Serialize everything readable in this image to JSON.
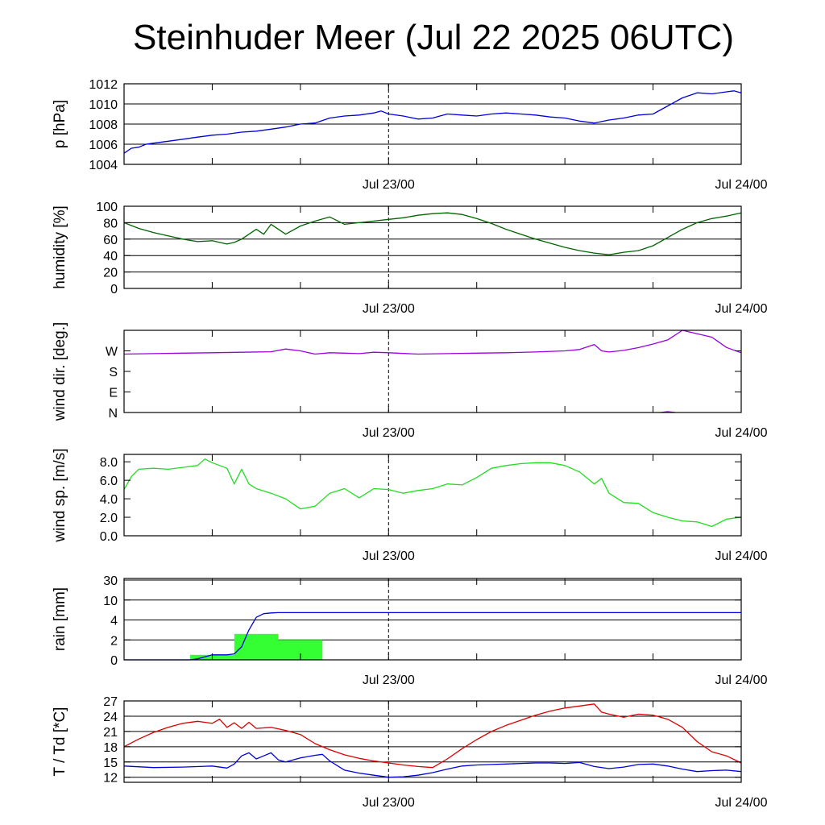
{
  "title": "Steinhuder Meer (Jul 22 2025 06UTC)",
  "colors": {
    "pressure": "#0000dd",
    "humidity": "#006400",
    "wind_dir": "#9a00dd",
    "wind_speed": "#22dd22",
    "rain_bar": "#33ff33",
    "rain_accum": "#0000dd",
    "temperature": "#dd0000",
    "dewpoint": "#0000dd"
  },
  "chart_data": [
    {
      "id": "pressure",
      "type": "line",
      "ylabel": "p [hPa]",
      "ylim": [
        1004,
        1012
      ],
      "yticks": [
        "1004",
        "1006",
        "1008",
        "1010",
        "1012"
      ],
      "ytick_values": [
        1004,
        1006,
        1008,
        1010,
        1012
      ],
      "xlim": [
        0,
        42
      ],
      "xticks": [
        "Jul 23/00",
        "Jul 24/00"
      ],
      "xtick_values": [
        18,
        42
      ],
      "grid": true,
      "series": [
        {
          "color_key": "pressure",
          "x": [
            0,
            0.5,
            1,
            1.5,
            2,
            3,
            4,
            5,
            6,
            7,
            8,
            9,
            10,
            11,
            12,
            13,
            14,
            15,
            16,
            17,
            17.5,
            18,
            19,
            20,
            21,
            22,
            23,
            24,
            25,
            26,
            27,
            28,
            29,
            30,
            31,
            32,
            33,
            34,
            35,
            36,
            37,
            38,
            39,
            40,
            41,
            41.5,
            42
          ],
          "y": [
            1005.1,
            1005.6,
            1005.7,
            1006.0,
            1006.1,
            1006.3,
            1006.5,
            1006.7,
            1006.9,
            1007.0,
            1007.2,
            1007.3,
            1007.5,
            1007.7,
            1008.0,
            1008.1,
            1008.6,
            1008.8,
            1008.9,
            1009.1,
            1009.3,
            1009.0,
            1008.8,
            1008.5,
            1008.6,
            1009.0,
            1008.9,
            1008.8,
            1009.0,
            1009.1,
            1009.0,
            1008.9,
            1008.7,
            1008.6,
            1008.3,
            1008.1,
            1008.4,
            1008.6,
            1008.9,
            1009.0,
            1009.8,
            1010.6,
            1011.1,
            1011.0,
            1011.2,
            1011.3,
            1011.1
          ]
        }
      ]
    },
    {
      "id": "humidity",
      "type": "line",
      "ylabel": "humidity [%]",
      "ylim": [
        0,
        100
      ],
      "yticks": [
        "0",
        "20",
        "40",
        "60",
        "80",
        "100"
      ],
      "ytick_values": [
        0,
        20,
        40,
        60,
        80,
        100
      ],
      "xlim": [
        0,
        42
      ],
      "xticks": [
        "Jul 23/00",
        "Jul 24/00"
      ],
      "xtick_values": [
        18,
        42
      ],
      "grid": true,
      "series": [
        {
          "color_key": "humidity",
          "x": [
            0,
            1,
            2,
            3,
            4,
            5,
            6,
            6.5,
            7,
            7.5,
            8,
            8.5,
            9,
            9.5,
            10,
            11,
            12,
            13,
            14,
            15,
            16,
            17,
            18,
            19,
            20,
            21,
            22,
            23,
            24,
            25,
            26,
            27,
            28,
            29,
            30,
            31,
            32,
            33,
            34,
            35,
            36,
            37,
            38,
            39,
            40,
            41,
            42
          ],
          "y": [
            80,
            73,
            68,
            64,
            60,
            57,
            58,
            56,
            54,
            56,
            60,
            66,
            72,
            66,
            78,
            66,
            76,
            82,
            87,
            78,
            80,
            82,
            84,
            86,
            89,
            91,
            92,
            90,
            85,
            79,
            72,
            66,
            60,
            55,
            50,
            46,
            43,
            41,
            44,
            46,
            52,
            62,
            72,
            80,
            85,
            88,
            92
          ]
        }
      ]
    },
    {
      "id": "wind_dir",
      "type": "line",
      "ylabel": "wind dir. [deg.]",
      "ylim": [
        0,
        360
      ],
      "yticks": [
        "N",
        "E",
        "S",
        "W"
      ],
      "ytick_values": [
        0,
        90,
        180,
        270
      ],
      "xlim": [
        0,
        42
      ],
      "xticks": [
        "Jul 23/00",
        "Jul 24/00"
      ],
      "xtick_values": [
        18,
        42
      ],
      "grid": false,
      "series": [
        {
          "color_key": "wind_dir",
          "x": [
            0,
            2,
            4,
            6,
            8,
            10,
            11,
            12,
            13,
            14,
            15,
            16,
            17,
            18,
            20,
            22,
            24,
            26,
            28,
            30,
            31,
            32,
            32.5,
            33,
            34,
            35,
            36,
            37,
            38,
            39,
            40,
            41,
            42
          ],
          "y": [
            256,
            258,
            260,
            262,
            264,
            266,
            278,
            270,
            256,
            262,
            260,
            258,
            264,
            262,
            256,
            258,
            260,
            262,
            265,
            270,
            276,
            298,
            270,
            265,
            272,
            284,
            300,
            318,
            360,
            345,
            330,
            285,
            262
          ]
        },
        {
          "color_key": "wind_dir",
          "x": [
            36.5,
            37,
            37.5
          ],
          "y": [
            0,
            4,
            0
          ]
        }
      ]
    },
    {
      "id": "wind_speed",
      "type": "line",
      "ylabel": "wind sp. [m/s]",
      "ylim": [
        0,
        8.8
      ],
      "yticks": [
        "0.0",
        "2.0",
        "4.0",
        "6.0",
        "8.0"
      ],
      "ytick_values": [
        0,
        2,
        4,
        6,
        8
      ],
      "xlim": [
        0,
        42
      ],
      "xticks": [
        "Jul 23/00",
        "Jul 24/00"
      ],
      "xtick_values": [
        18,
        42
      ],
      "grid": false,
      "series": [
        {
          "color_key": "wind_speed",
          "x": [
            0,
            0.5,
            1,
            2,
            3,
            4,
            5,
            5.5,
            6,
            7,
            7.5,
            8,
            8.5,
            9,
            10,
            11,
            12,
            13,
            14,
            15,
            16,
            17,
            18,
            19,
            20,
            21,
            22,
            23,
            24,
            25,
            26,
            27,
            28,
            29,
            30,
            31,
            32,
            32.5,
            33,
            34,
            35,
            36,
            37,
            38,
            39,
            40,
            41,
            42
          ],
          "y": [
            5.0,
            6.4,
            7.2,
            7.3,
            7.2,
            7.4,
            7.6,
            8.3,
            7.9,
            7.3,
            5.6,
            7.2,
            5.6,
            5.1,
            4.6,
            4.0,
            2.9,
            3.2,
            4.6,
            5.1,
            4.1,
            5.1,
            5.0,
            4.6,
            4.9,
            5.1,
            5.6,
            5.5,
            6.3,
            7.3,
            7.6,
            7.8,
            7.9,
            7.9,
            7.6,
            6.9,
            5.6,
            6.2,
            4.6,
            3.6,
            3.5,
            2.5,
            2.0,
            1.6,
            1.5,
            1.0,
            1.8,
            2.0
          ]
        }
      ]
    },
    {
      "id": "rain",
      "type": "bar",
      "ylabel": "rain [mm]",
      "ylim": [
        0,
        30
      ],
      "yticks": [
        "0",
        "2",
        "4",
        "10",
        "30"
      ],
      "ytick_values": [
        0,
        2,
        4,
        10,
        30
      ],
      "xlim": [
        0,
        42
      ],
      "xticks": [
        "Jul 23/00",
        "Jul 24/00"
      ],
      "xtick_values": [
        18,
        42
      ],
      "grid": true,
      "bars": [
        {
          "x0": 4.5,
          "x1": 7.5,
          "value": 0.5
        },
        {
          "x0": 7.5,
          "x1": 10.5,
          "value": 2.6
        },
        {
          "x0": 10.5,
          "x1": 13.5,
          "value": 2.0
        }
      ],
      "series": [
        {
          "color_key": "rain_accum",
          "x": [
            0,
            4.5,
            5,
            6,
            7,
            7.5,
            8,
            8.5,
            9,
            9.5,
            10,
            10.5,
            11,
            12,
            14,
            18,
            22,
            26,
            30,
            34,
            38,
            42
          ],
          "y": [
            0,
            0,
            0.1,
            0.5,
            0.5,
            0.6,
            1.3,
            3.0,
            4.8,
            5.9,
            6.1,
            6.2,
            6.2,
            6.2,
            6.2,
            6.2,
            6.2,
            6.2,
            6.2,
            6.2,
            6.2,
            6.2
          ]
        }
      ]
    },
    {
      "id": "temperature",
      "type": "line",
      "ylabel": "T / Td [*C]",
      "ylim": [
        11,
        27
      ],
      "yticks": [
        "12",
        "15",
        "18",
        "21",
        "24",
        "27"
      ],
      "ytick_values": [
        12,
        15,
        18,
        21,
        24,
        27
      ],
      "xlim": [
        0,
        42
      ],
      "xticks": [
        "Jul 23/00",
        "Jul 24/00"
      ],
      "xtick_values": [
        18,
        42
      ],
      "grid": true,
      "series": [
        {
          "name": "T",
          "color_key": "temperature",
          "x": [
            0,
            1,
            2,
            3,
            4,
            5,
            6,
            6.5,
            7,
            7.5,
            8,
            8.5,
            9,
            10,
            11,
            12,
            13,
            14,
            15,
            16,
            17,
            18,
            19,
            20,
            21,
            22,
            23,
            24,
            25,
            26,
            27,
            28,
            29,
            30,
            31,
            32,
            32.5,
            33,
            34,
            35,
            36,
            37,
            38,
            39,
            40,
            41,
            42
          ],
          "y": [
            18.0,
            19.5,
            20.8,
            21.8,
            22.6,
            23.0,
            22.6,
            23.4,
            21.8,
            22.7,
            21.6,
            22.8,
            21.6,
            21.8,
            21.2,
            20.4,
            18.6,
            17.4,
            16.4,
            15.7,
            15.2,
            14.8,
            14.4,
            14.1,
            13.9,
            15.6,
            17.6,
            19.4,
            21.0,
            22.2,
            23.2,
            24.2,
            25.0,
            25.6,
            26.0,
            26.4,
            24.8,
            24.4,
            23.8,
            24.4,
            24.2,
            23.4,
            21.8,
            19.0,
            17.0,
            16.2,
            14.8
          ]
        },
        {
          "name": "Td",
          "color_key": "dewpoint",
          "x": [
            0,
            2,
            4,
            6,
            7,
            7.5,
            8,
            8.5,
            9,
            9.5,
            10,
            10.5,
            11,
            12,
            13,
            13.5,
            14,
            15,
            16,
            17,
            18,
            19,
            20,
            21,
            22,
            23,
            24,
            25,
            26,
            27,
            28,
            29,
            30,
            31,
            32,
            33,
            34,
            35,
            36,
            37,
            38,
            39,
            40,
            41,
            42
          ],
          "y": [
            14.2,
            13.9,
            14.0,
            14.2,
            13.8,
            14.6,
            16.2,
            16.8,
            15.6,
            16.2,
            16.8,
            15.4,
            15.0,
            15.8,
            16.3,
            16.5,
            15.2,
            13.4,
            12.8,
            12.4,
            12.0,
            12.1,
            12.4,
            12.9,
            13.6,
            14.2,
            14.4,
            14.5,
            14.6,
            14.7,
            14.8,
            14.8,
            14.7,
            14.9,
            14.1,
            13.7,
            14.0,
            14.5,
            14.6,
            14.2,
            13.6,
            13.1,
            13.3,
            13.4,
            13.1
          ]
        }
      ]
    }
  ]
}
